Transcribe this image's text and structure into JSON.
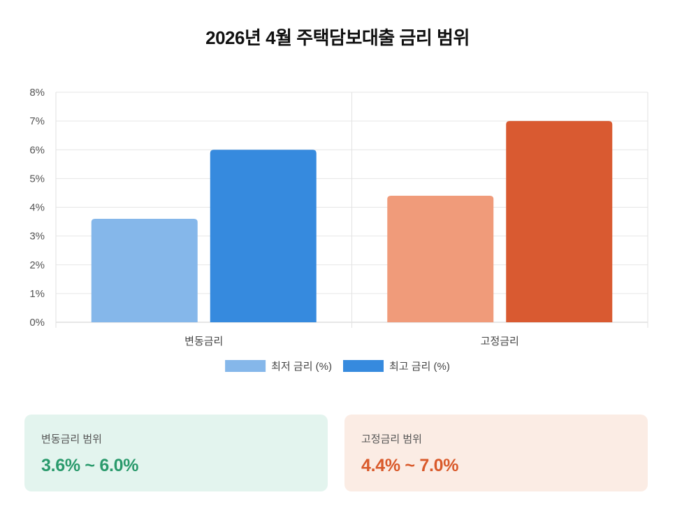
{
  "chart_data": {
    "type": "bar",
    "title": "2026년 4월 주택담보대출 금리 범위",
    "categories": [
      "변동금리",
      "고정금리"
    ],
    "series": [
      {
        "name": "최저 금리 (%)",
        "values": [
          3.6,
          4.4
        ],
        "colors": [
          "#85b7ea",
          "#f09b7a"
        ]
      },
      {
        "name": "최고 금리 (%)",
        "values": [
          6.0,
          7.0
        ],
        "colors": [
          "#368ade",
          "#d95a31"
        ]
      }
    ],
    "ylim": [
      0,
      8
    ],
    "yticks": [
      0,
      1,
      2,
      3,
      4,
      5,
      6,
      7,
      8
    ],
    "ytick_suffix": "%",
    "legend_colors": [
      "#85b7ea",
      "#368ade"
    ],
    "grid": true,
    "legend_position": "bottom"
  },
  "cards": {
    "variable": {
      "label": "변동금리 범위",
      "value": "3.6% ~ 6.0%",
      "color": "#2a9a6c"
    },
    "fixed": {
      "label": "고정금리 범위",
      "value": "4.4% ~ 7.0%",
      "color": "#d95a2b"
    }
  }
}
